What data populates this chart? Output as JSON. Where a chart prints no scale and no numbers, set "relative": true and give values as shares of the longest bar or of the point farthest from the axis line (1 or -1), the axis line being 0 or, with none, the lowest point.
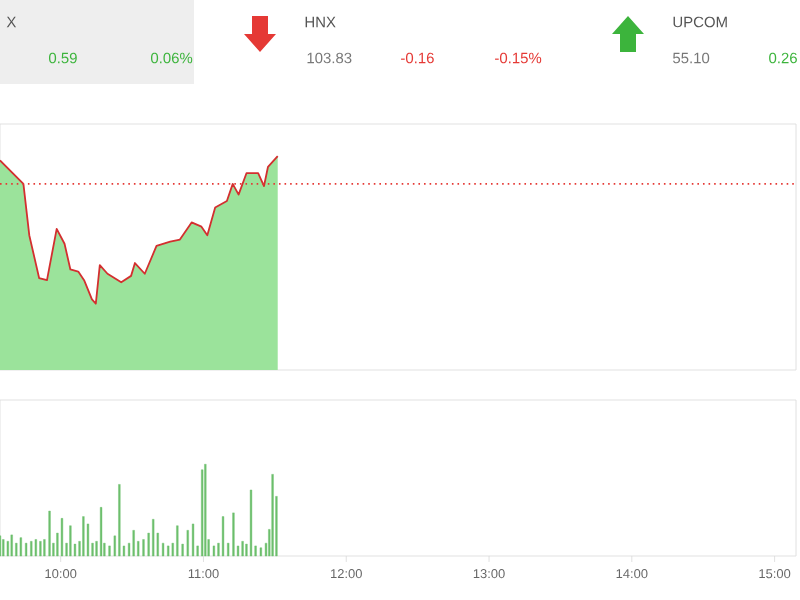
{
  "chart_data": [
    {
      "type": "area",
      "relative": true,
      "xlim": [
        9.575,
        15.15
      ],
      "annotations": [
        "X",
        "0.59",
        "0.06%",
        "HNX",
        "103.83",
        "-0.16",
        "-0.15%",
        "UPCOM",
        "55.10",
        "0.26"
      ],
      "ref_lines": [
        {
          "axis": "y",
          "value": 0.87,
          "color": "#e53935",
          "line_style": "dotted"
        }
      ],
      "series": [
        {
          "type": "area",
          "color": "#9be39b",
          "x": [
            9.575,
            9.739,
            9.78,
            9.849,
            9.904,
            9.972,
            10.027,
            10.068,
            10.123,
            10.164,
            10.219,
            10.246,
            10.274,
            10.328,
            10.424,
            10.493,
            10.52,
            10.589,
            10.671,
            10.767,
            10.835,
            10.917,
            10.986,
            11.027,
            11.082,
            11.164,
            11.205,
            11.246,
            11.301,
            11.383,
            11.424,
            11.452,
            11.52
          ],
          "values": [
            0.98,
            0.87,
            0.63,
            0.43,
            0.42,
            0.66,
            0.59,
            0.47,
            0.46,
            0.42,
            0.33,
            0.31,
            0.49,
            0.45,
            0.41,
            0.44,
            0.5,
            0.45,
            0.58,
            0.6,
            0.61,
            0.69,
            0.67,
            0.63,
            0.76,
            0.79,
            0.87,
            0.82,
            0.92,
            0.92,
            0.86,
            0.95,
            1
          ]
        },
        {
          "type": "line",
          "color": "#d32f2f",
          "x": [
            9.575,
            9.739,
            9.78,
            9.849,
            9.904,
            9.972,
            10.027,
            10.068,
            10.123,
            10.164,
            10.219,
            10.246,
            10.274,
            10.328,
            10.424,
            10.493,
            10.52,
            10.589,
            10.671,
            10.767,
            10.835,
            10.917,
            10.986,
            11.027,
            11.082,
            11.164,
            11.205,
            11.246,
            11.301,
            11.383,
            11.424,
            11.452,
            11.52
          ],
          "values": [
            0.98,
            0.87,
            0.63,
            0.43,
            0.42,
            0.66,
            0.59,
            0.47,
            0.46,
            0.42,
            0.33,
            0.31,
            0.49,
            0.45,
            0.41,
            0.44,
            0.5,
            0.45,
            0.58,
            0.6,
            0.61,
            0.69,
            0.67,
            0.63,
            0.76,
            0.79,
            0.87,
            0.82,
            0.92,
            0.92,
            0.86,
            0.95,
            1
          ]
        }
      ]
    },
    {
      "type": "bar",
      "relative": true,
      "xlim": [
        9.575,
        15.15
      ],
      "xticks": [
        {
          "value": 10,
          "label": "10:00"
        },
        {
          "value": 11,
          "label": "11:00"
        },
        {
          "value": 12,
          "label": "12:00"
        },
        {
          "value": 13,
          "label": "13:00"
        },
        {
          "value": 14,
          "label": "14:00"
        },
        {
          "value": 15,
          "label": "15:00"
        }
      ],
      "x": [
        9.575,
        9.598,
        9.63,
        9.657,
        9.689,
        9.721,
        9.758,
        9.794,
        9.826,
        9.858,
        9.886,
        9.922,
        9.949,
        9.977,
        10.009,
        10.041,
        10.068,
        10.1,
        10.132,
        10.159,
        10.191,
        10.223,
        10.251,
        10.283,
        10.306,
        10.342,
        10.379,
        10.411,
        10.443,
        10.479,
        10.511,
        10.543,
        10.58,
        10.616,
        10.648,
        10.68,
        10.717,
        10.753,
        10.785,
        10.817,
        10.854,
        10.89,
        10.927,
        10.959,
        10.991,
        11.013,
        11.036,
        11.073,
        11.105,
        11.137,
        11.173,
        11.21,
        11.242,
        11.274,
        11.301,
        11.333,
        11.365,
        11.402,
        11.438,
        11.461,
        11.484,
        11.511
      ],
      "values": [
        0.22,
        0.18,
        0.16,
        0.23,
        0.14,
        0.2,
        0.14,
        0.16,
        0.18,
        0.16,
        0.18,
        0.49,
        0.14,
        0.25,
        0.41,
        0.14,
        0.33,
        0.13,
        0.16,
        0.43,
        0.35,
        0.14,
        0.16,
        0.53,
        0.14,
        0.11,
        0.22,
        0.78,
        0.11,
        0.14,
        0.28,
        0.16,
        0.18,
        0.25,
        0.4,
        0.25,
        0.14,
        0.11,
        0.14,
        0.33,
        0.13,
        0.28,
        0.35,
        0.11,
        0.94,
        1,
        0.18,
        0.11,
        0.14,
        0.43,
        0.14,
        0.47,
        0.11,
        0.16,
        0.13,
        0.72,
        0.11,
        0.09,
        0.14,
        0.29,
        0.89,
        0.65
      ],
      "color": "#6dbf6d"
    }
  ]
}
